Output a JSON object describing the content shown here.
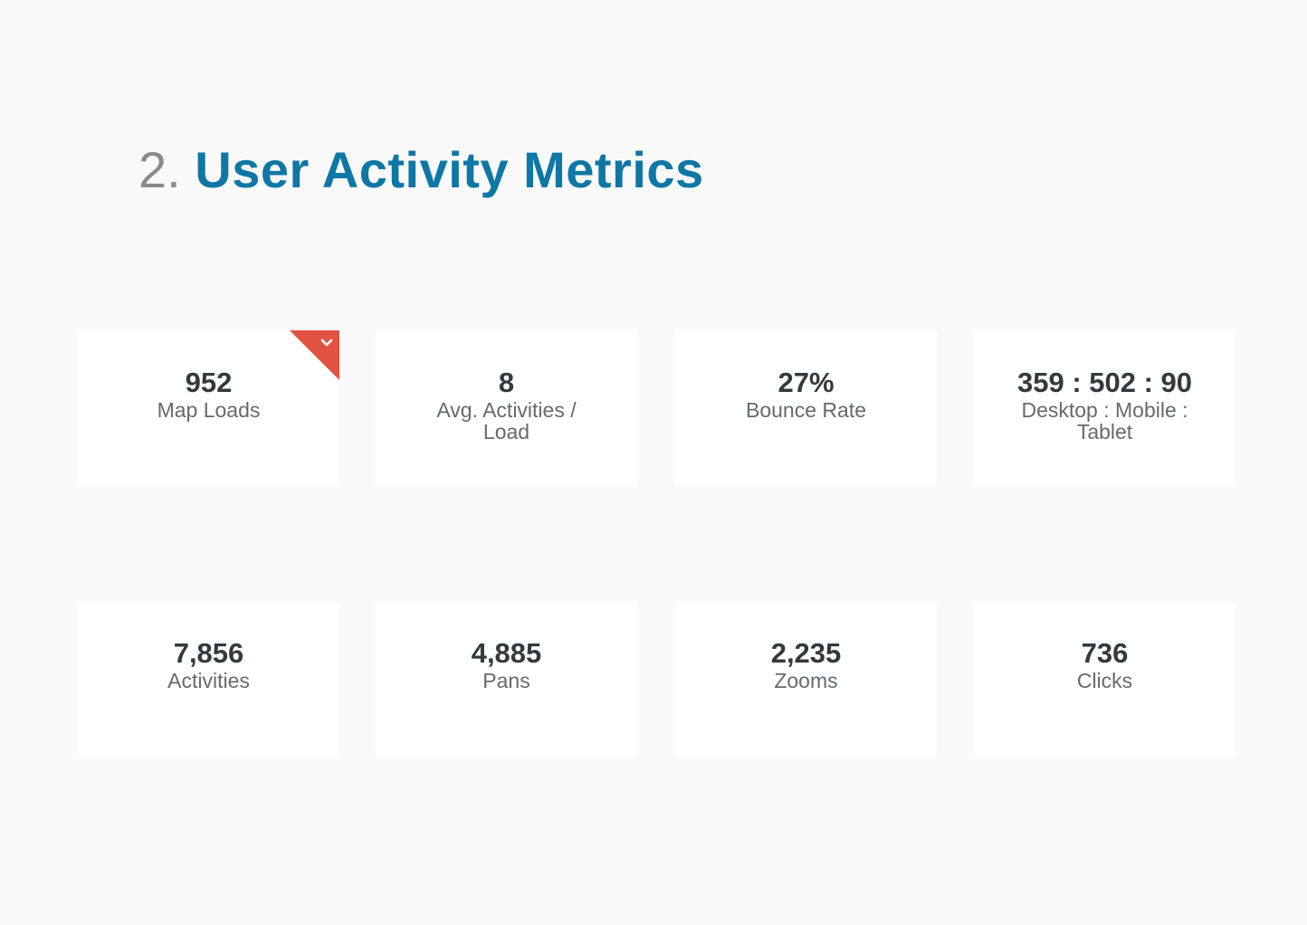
{
  "header": {
    "number": "2.",
    "title": "User Activity Metrics"
  },
  "metrics": [
    {
      "value": "952",
      "label": "Map Loads",
      "flagged": true
    },
    {
      "value": "8",
      "label": "Avg. Activities / Load"
    },
    {
      "value": "27%",
      "label": "Bounce Rate"
    },
    {
      "value": "359 : 502 : 90",
      "label": "Desktop : Mobile : Tablet"
    },
    {
      "value": "7,856",
      "label": "Activities"
    },
    {
      "value": "4,885",
      "label": "Pans"
    },
    {
      "value": "2,235",
      "label": "Zooms"
    },
    {
      "value": "736",
      "label": "Clicks"
    }
  ],
  "colors": {
    "background": "#f9f9f9",
    "title_number": "#8a8a8a",
    "title_text": "#0e77a5",
    "value_text": "#34393c",
    "label_text": "#666a6d",
    "flag": "#e05343"
  },
  "icons": {
    "flag_icon": "chevron-down-icon"
  }
}
